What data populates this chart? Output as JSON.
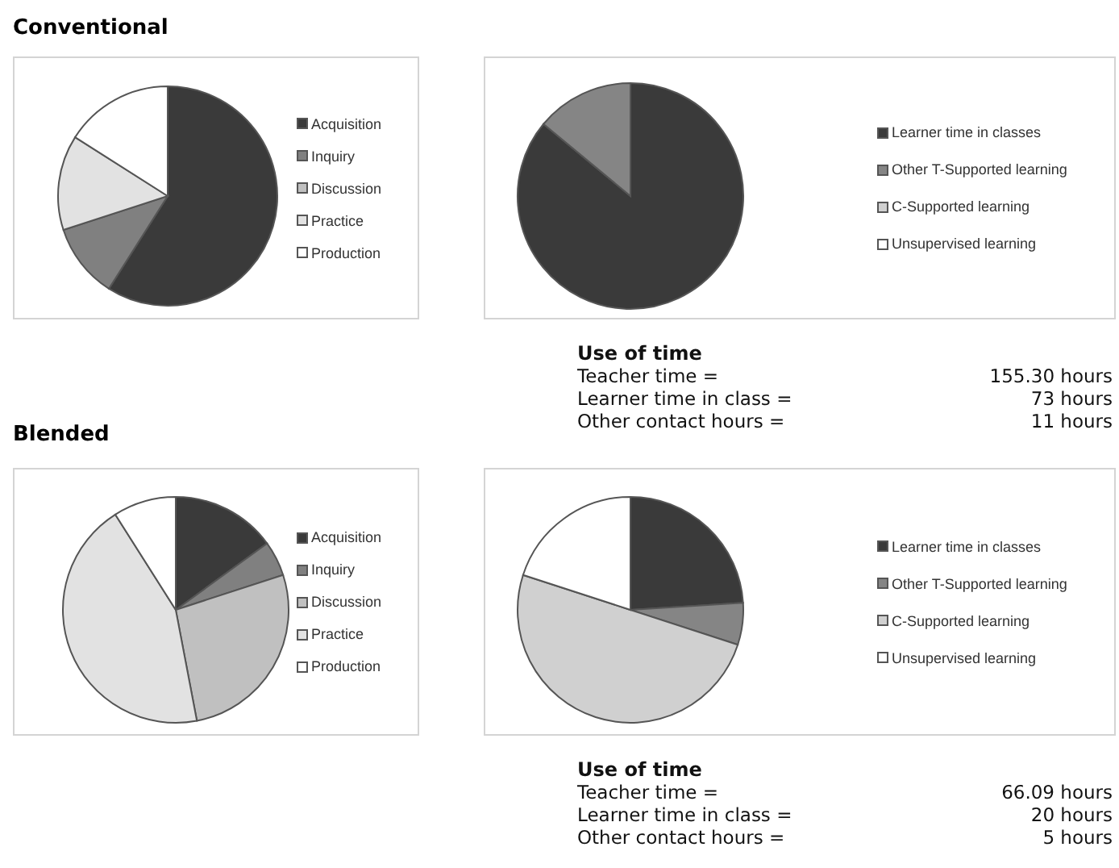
{
  "chart_data": [
    {
      "type": "pie",
      "title": "Conventional",
      "categories": [
        "Acquisition",
        "Inquiry",
        "Discussion",
        "Practice",
        "Production"
      ],
      "values": [
        59,
        11,
        0,
        14,
        16
      ],
      "colors": [
        "#3a3a3a",
        "#808080",
        "#c0c0c0",
        "#e2e2e2",
        "#ffffff"
      ],
      "legend": "right"
    },
    {
      "type": "pie",
      "categories": [
        "Learner time in classes",
        "Other T-Supported learning",
        "C-Supported learning",
        "Unsupervised learning"
      ],
      "values": [
        86,
        14,
        0,
        0
      ],
      "colors": [
        "#3a3a3a",
        "#858585",
        "#d0d0d0",
        "#ffffff"
      ],
      "legend": "right"
    },
    {
      "type": "other",
      "title": "Use of time",
      "annotations": [
        "Teacher time =",
        "155.30 hours",
        "Learner time in class =",
        "73 hours",
        "Other contact hours =",
        "11 hours"
      ]
    },
    {
      "type": "pie",
      "title": "Blended",
      "categories": [
        "Acquisition",
        "Inquiry",
        "Discussion",
        "Practice",
        "Production"
      ],
      "values": [
        15,
        5,
        27,
        44,
        9
      ],
      "colors": [
        "#3a3a3a",
        "#808080",
        "#c0c0c0",
        "#e2e2e2",
        "#ffffff"
      ],
      "legend": "right"
    },
    {
      "type": "pie",
      "categories": [
        "Learner time in classes",
        "Other T-Supported learning",
        "C-Supported learning",
        "Unsupervised learning"
      ],
      "values": [
        24,
        6,
        50,
        20
      ],
      "colors": [
        "#3a3a3a",
        "#858585",
        "#d0d0d0",
        "#ffffff"
      ],
      "legend": "right"
    },
    {
      "type": "other",
      "title": "Use of time",
      "annotations": [
        "Teacher time =",
        "66.09 hours",
        "Learner time in class =",
        "20 hours",
        "Other contact hours =",
        "5 hours"
      ]
    }
  ]
}
